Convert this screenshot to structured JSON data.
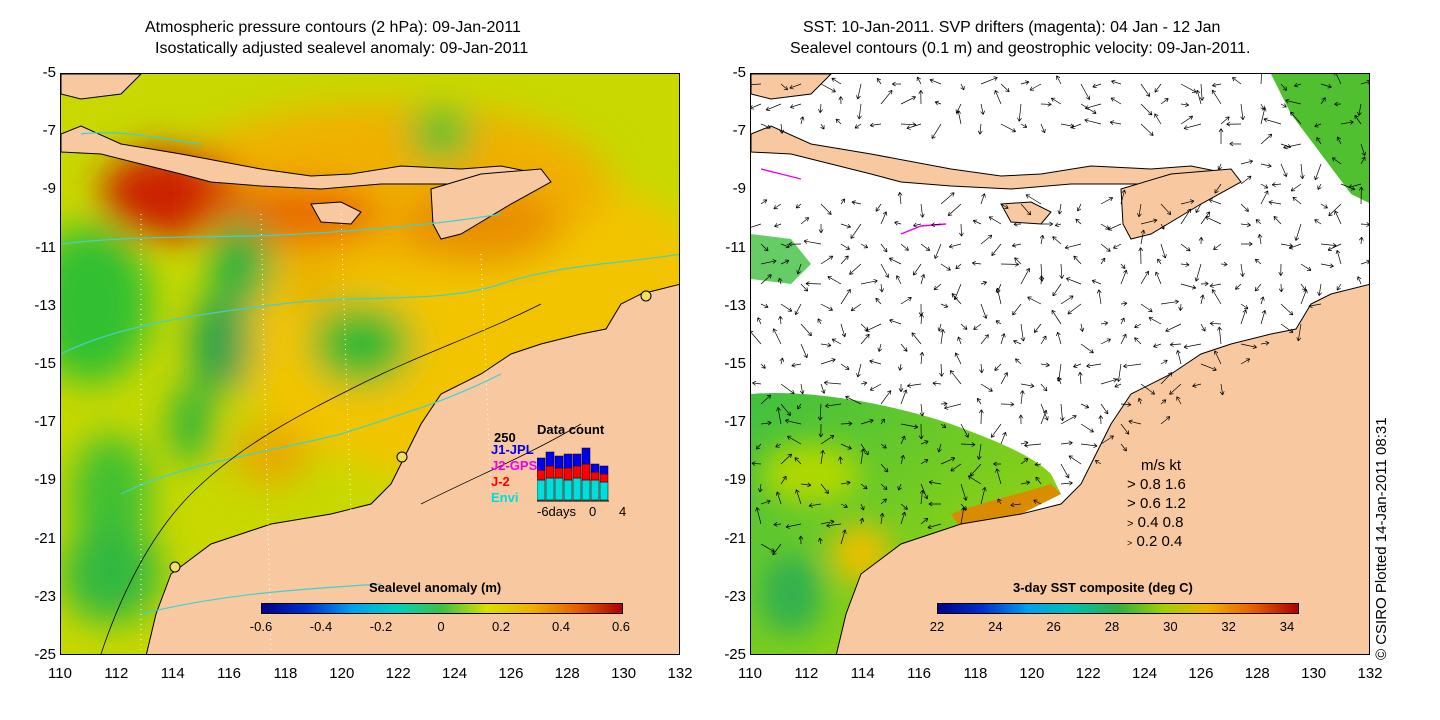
{
  "left_panel": {
    "title_line1": "Atmospheric pressure contours (2 hPa): 09-Jan-2011",
    "title_line2": "Isostatically adjusted sealevel anomaly: 09-Jan-2011",
    "y_ticks": [
      "-5",
      "-7",
      "-9",
      "-11",
      "-13",
      "-15",
      "-17",
      "-19",
      "-21",
      "-23",
      "-25"
    ],
    "x_ticks": [
      "110",
      "112",
      "114",
      "116",
      "118",
      "120",
      "122",
      "124",
      "126",
      "128",
      "130",
      "132"
    ],
    "colorbar": {
      "title": "Sealevel anomaly (m)",
      "ticks": [
        "-0.6",
        "-0.4",
        "-0.2",
        "0",
        "0.2",
        "0.4",
        "0.6"
      ]
    },
    "data_count": {
      "title": "Data count",
      "max_label": "250",
      "series": [
        {
          "name": "J1-JPL",
          "color": "#0000ee"
        },
        {
          "name": "J2-GPS",
          "color": "#ee00ee"
        },
        {
          "name": "J-2",
          "color": "#ff0000"
        },
        {
          "name": "Envi",
          "color": "#00dddd"
        }
      ],
      "x_labels": [
        "-6days",
        "0",
        "4"
      ]
    }
  },
  "right_panel": {
    "title_line1": "SST: 10-Jan-2011. SVP drifters (magenta): 04 Jan - 12 Jan",
    "title_line2": "Sealevel contours (0.1 m) and geostrophic velocity: 09-Jan-2011.",
    "y_ticks": [
      "-5",
      "-7",
      "-9",
      "-11",
      "-13",
      "-15",
      "-17",
      "-19",
      "-21",
      "-23",
      "-25"
    ],
    "x_ticks": [
      "110",
      "112",
      "114",
      "116",
      "118",
      "120",
      "122",
      "124",
      "126",
      "128",
      "130",
      "132"
    ],
    "colorbar": {
      "title": "3-day SST composite (deg C)",
      "ticks": [
        "22",
        "24",
        "26",
        "28",
        "30",
        "32",
        "34"
      ]
    },
    "velocity_legend": {
      "header": "m/s  kt",
      "rows": [
        "0.8  1.6",
        "0.6  1.2",
        "0.4  0.8",
        "0.2  0.4"
      ]
    }
  },
  "credit": "© CSIRO Plotted 14-Jan-2011 08:31",
  "colors": {
    "land": "#f8c9a0",
    "ocean_base": "#e6c800",
    "contour": "#40d0d0"
  }
}
